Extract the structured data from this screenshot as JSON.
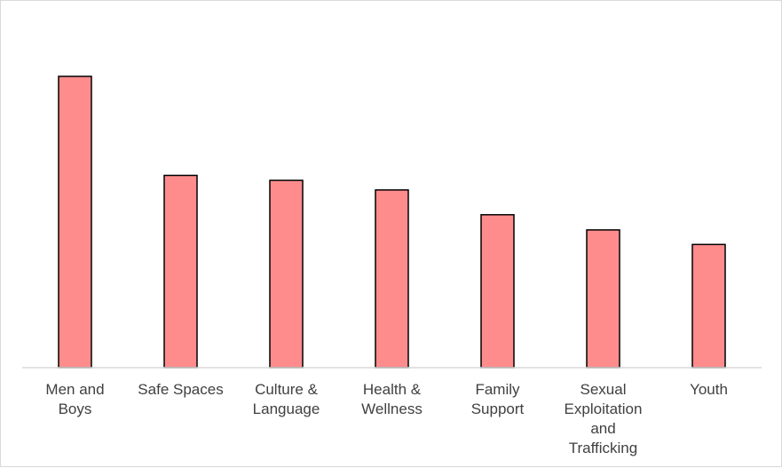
{
  "chart_data": {
    "type": "bar",
    "title": "",
    "xlabel": "",
    "ylabel": "",
    "categories": [
      [
        "Men and",
        "Boys"
      ],
      [
        "Safe Spaces"
      ],
      [
        "Culture &",
        "Language"
      ],
      [
        "Health &",
        "Wellness"
      ],
      [
        "Family",
        "Support"
      ],
      [
        "Sexual",
        "Exploitation",
        "and",
        "Trafficking"
      ],
      [
        "Youth"
      ]
    ],
    "values": [
      100,
      66,
      64.3,
      61,
      52.5,
      47.3,
      42.3
    ],
    "ylim": [
      0,
      100
    ],
    "grid": false,
    "legend": "none",
    "colors": {
      "bar_fill": "#ff8c8c",
      "bar_stroke": "#000000",
      "axis": "#d9d9d9",
      "label": "#404040"
    }
  }
}
